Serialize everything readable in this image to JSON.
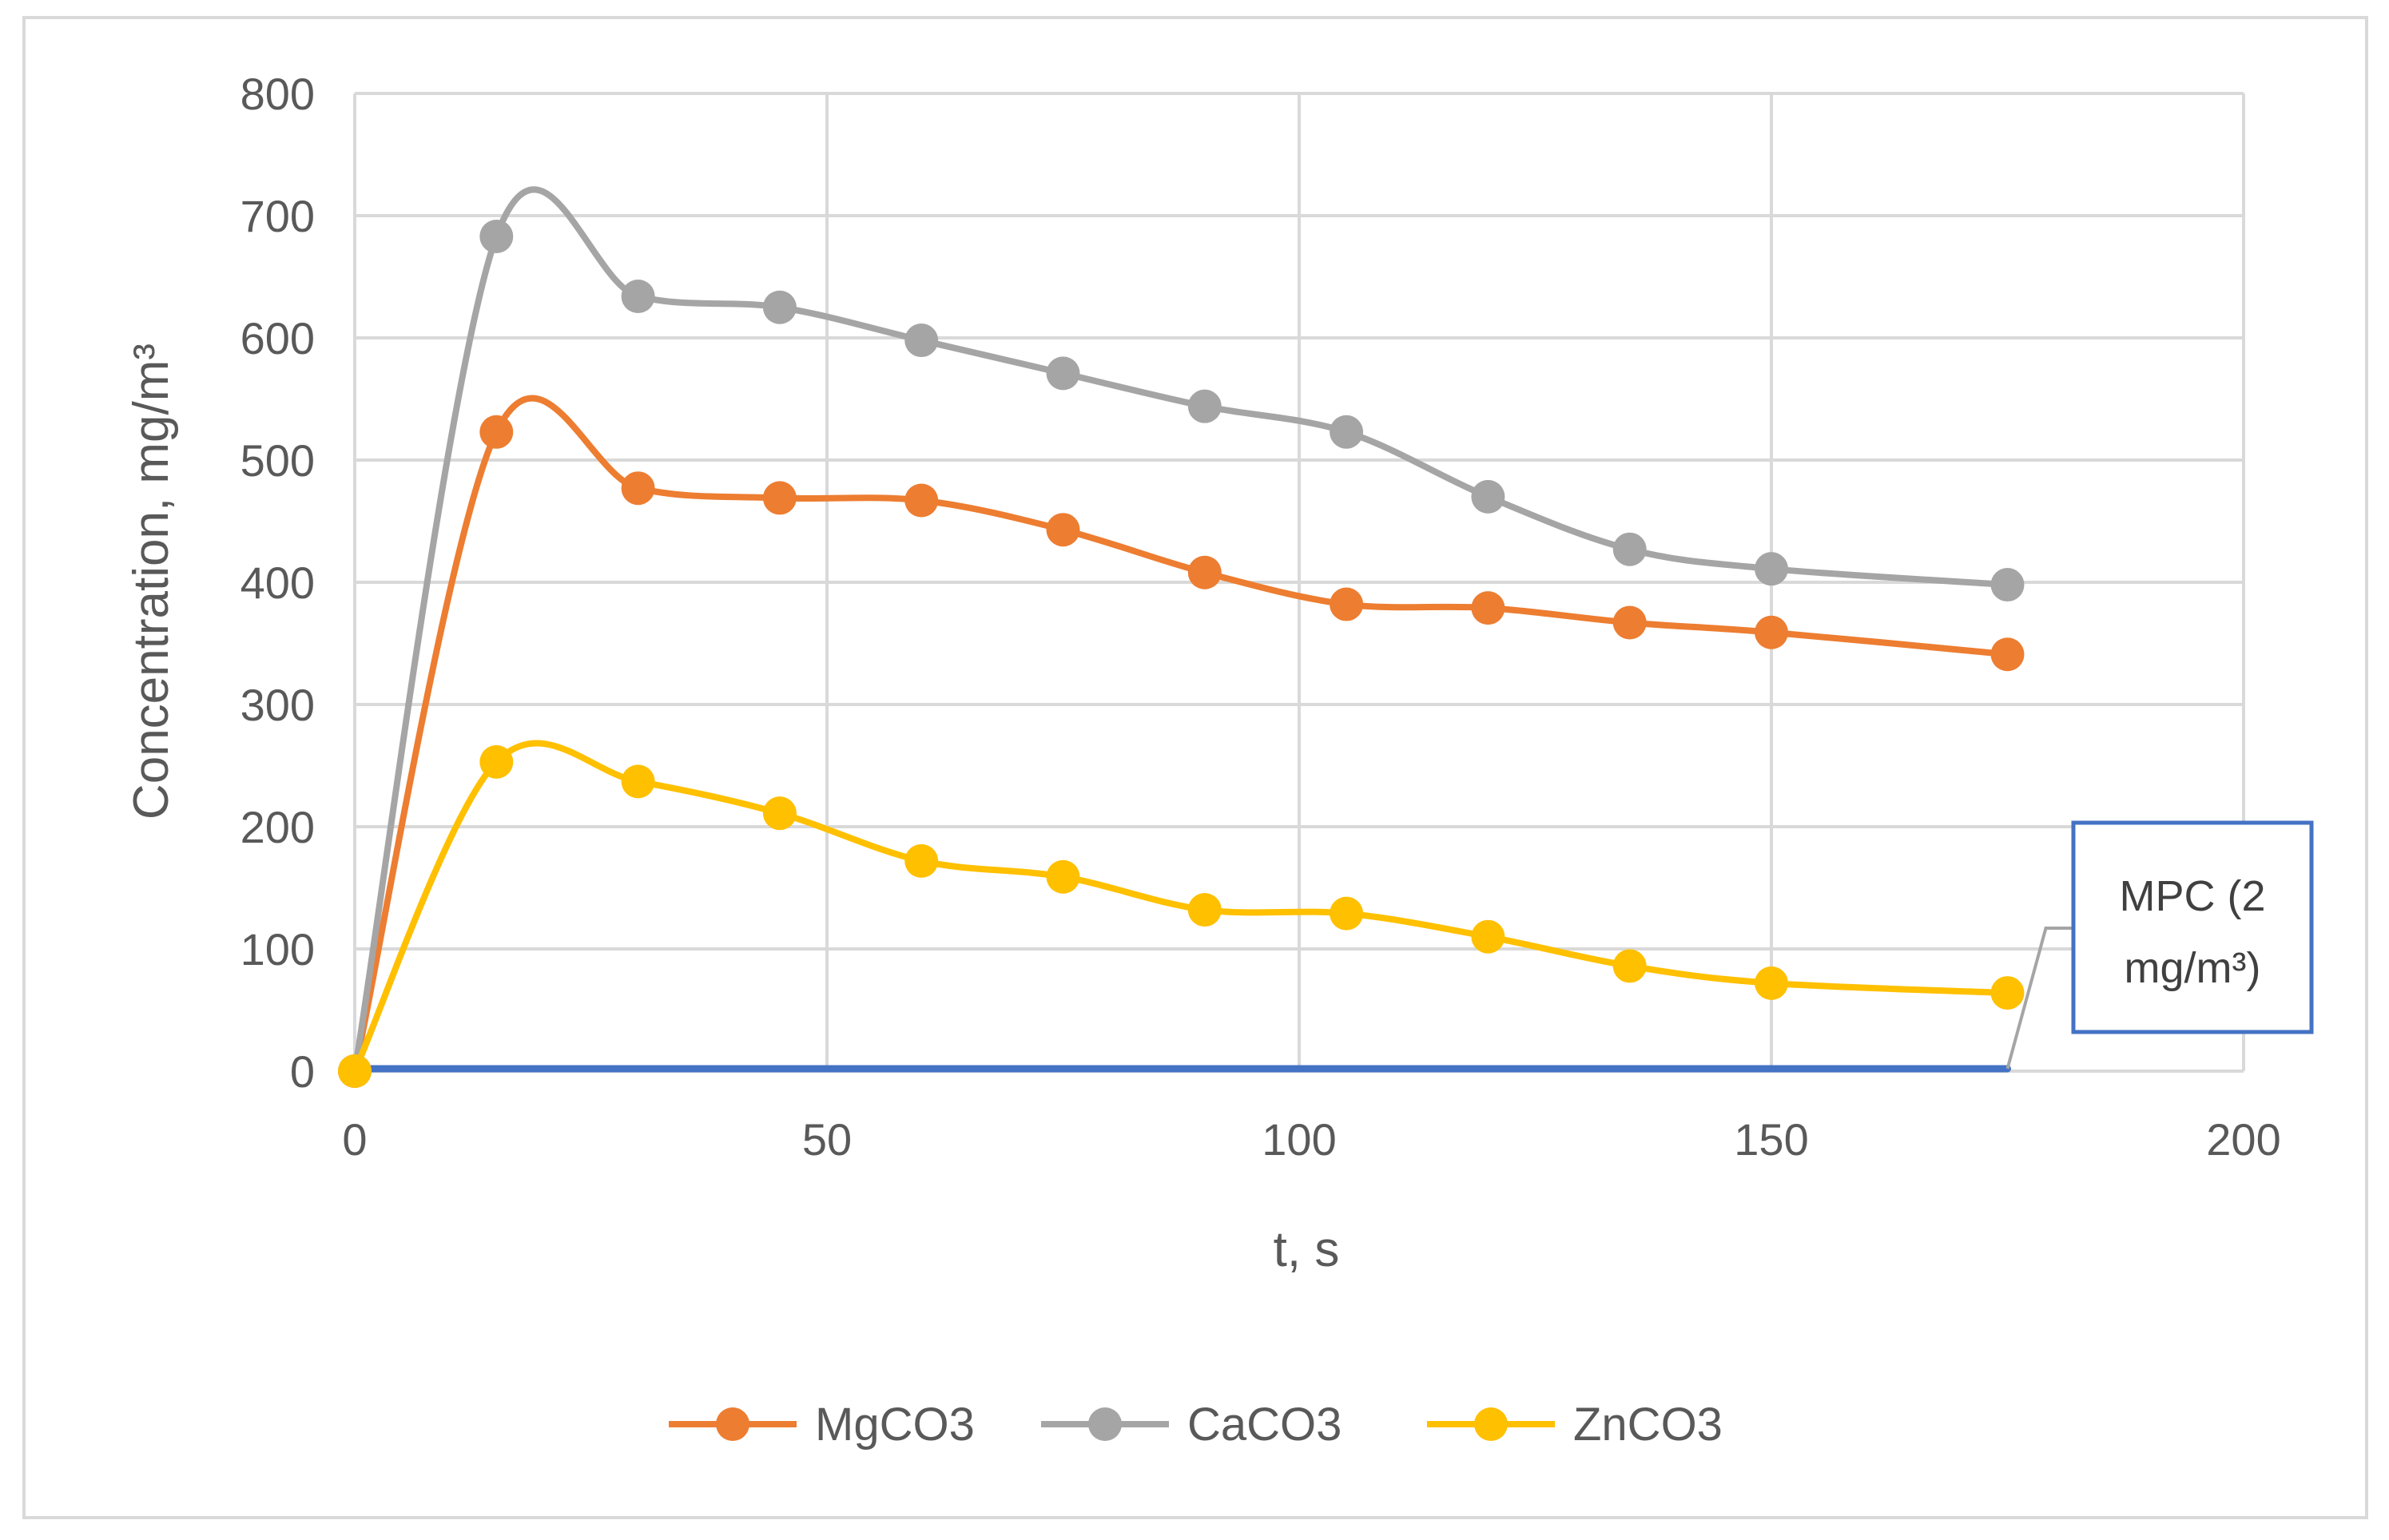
{
  "chart_data": {
    "type": "line",
    "smooth": true,
    "title": "",
    "xlabel": "t, s",
    "ylabel": "Concentration, mg/m³",
    "xlim": [
      0,
      200
    ],
    "ylim": [
      0,
      800
    ],
    "x_ticks": [
      0,
      50,
      100,
      150,
      200
    ],
    "y_ticks": [
      0,
      100,
      200,
      300,
      400,
      500,
      600,
      700,
      800
    ],
    "grid": true,
    "legend_position": "bottom",
    "x": [
      0,
      15,
      30,
      45,
      60,
      75,
      90,
      105,
      120,
      135,
      150,
      175
    ],
    "series": [
      {
        "name": "MgCO3",
        "color": "#ED7D31",
        "markers": true,
        "values": [
          0,
          523,
          477,
          469,
          467,
          443,
          408,
          382,
          379,
          367,
          359,
          341
        ]
      },
      {
        "name": "CaCO3",
        "color": "#A5A5A5",
        "markers": true,
        "values": [
          0,
          683,
          634,
          625,
          598,
          571,
          544,
          523,
          470,
          427,
          411,
          398
        ]
      },
      {
        "name": "ZnCO3",
        "color": "#FFC000",
        "markers": true,
        "values": [
          0,
          253,
          237,
          211,
          172,
          159,
          132,
          129,
          110,
          86,
          72,
          64
        ]
      },
      {
        "name": "MPC",
        "color": "#4472C4",
        "markers": false,
        "in_legend": false,
        "values": [
          2,
          2,
          2,
          2,
          2,
          2,
          2,
          2,
          2,
          2,
          2,
          2
        ]
      }
    ],
    "annotations": [
      {
        "series": "MPC",
        "line1": "MPC (2",
        "line2": "mg/m³)",
        "border_color": "#4472C4"
      }
    ]
  }
}
